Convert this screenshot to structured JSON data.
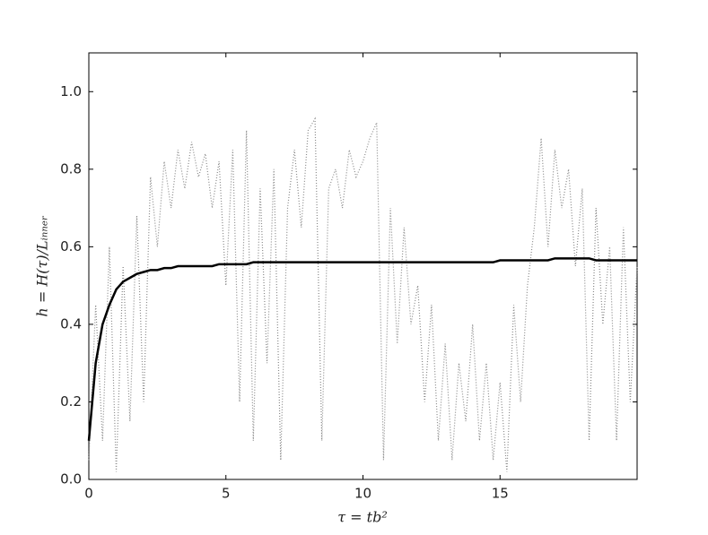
{
  "chart_data": {
    "type": "line",
    "xlabel": "τ = tb²",
    "ylabel": "h = H(τ)/Lᵢₙₙₑᵣ",
    "x": [
      0,
      0.25,
      0.5,
      0.75,
      1,
      1.25,
      1.5,
      1.75,
      2,
      2.25,
      2.5,
      2.75,
      3,
      3.25,
      3.5,
      3.75,
      4,
      4.25,
      4.5,
      4.75,
      5,
      5.25,
      5.5,
      5.75,
      6,
      6.25,
      6.5,
      6.75,
      7,
      7.25,
      7.5,
      7.75,
      8,
      8.25,
      8.5,
      8.75,
      9,
      9.25,
      9.5,
      9.75,
      10,
      10.25,
      10.5,
      10.75,
      11,
      11.25,
      11.5,
      11.75,
      12,
      12.25,
      12.5,
      12.75,
      13,
      13.25,
      13.5,
      13.75,
      14,
      14.25,
      14.5,
      14.75,
      15,
      15.25,
      15.5,
      15.75,
      16,
      16.25,
      16.5,
      16.75,
      17,
      17.25,
      17.5,
      17.75,
      18,
      18.25,
      18.5,
      18.75,
      19,
      19.25,
      19.5,
      19.75,
      20
    ],
    "series": [
      {
        "color": "#888888",
        "style": "dotted",
        "values": [
          0.05,
          0.45,
          0.1,
          0.6,
          0.02,
          0.55,
          0.15,
          0.68,
          0.2,
          0.78,
          0.6,
          0.82,
          0.7,
          0.85,
          0.75,
          0.87,
          0.78,
          0.84,
          0.7,
          0.82,
          0.5,
          0.85,
          0.2,
          0.9,
          0.1,
          0.75,
          0.3,
          0.8,
          0.05,
          0.7,
          0.85,
          0.65,
          0.9,
          0.93,
          0.1,
          0.75,
          0.8,
          0.7,
          0.85,
          0.78,
          0.82,
          0.88,
          0.92,
          0.05,
          0.7,
          0.35,
          0.65,
          0.4,
          0.5,
          0.2,
          0.45,
          0.1,
          0.35,
          0.05,
          0.3,
          0.15,
          0.4,
          0.1,
          0.3,
          0.05,
          0.25,
          0.02,
          0.45,
          0.2,
          0.5,
          0.65,
          0.88,
          0.6,
          0.85,
          0.7,
          0.8,
          0.55,
          0.75,
          0.1,
          0.7,
          0.4,
          0.6,
          0.1,
          0.65,
          0.2,
          0.55
        ]
      },
      {
        "color": "#000000",
        "style": "solid",
        "values": [
          0.1,
          0.3,
          0.4,
          0.45,
          0.49,
          0.51,
          0.52,
          0.53,
          0.535,
          0.54,
          0.54,
          0.545,
          0.545,
          0.55,
          0.55,
          0.55,
          0.55,
          0.55,
          0.55,
          0.555,
          0.555,
          0.555,
          0.555,
          0.555,
          0.56,
          0.56,
          0.56,
          0.56,
          0.56,
          0.56,
          0.56,
          0.56,
          0.56,
          0.56,
          0.56,
          0.56,
          0.56,
          0.56,
          0.56,
          0.56,
          0.56,
          0.56,
          0.56,
          0.56,
          0.56,
          0.56,
          0.56,
          0.56,
          0.56,
          0.56,
          0.56,
          0.56,
          0.56,
          0.56,
          0.56,
          0.56,
          0.56,
          0.56,
          0.56,
          0.56,
          0.565,
          0.565,
          0.565,
          0.565,
          0.565,
          0.565,
          0.565,
          0.565,
          0.57,
          0.57,
          0.57,
          0.57,
          0.57,
          0.57,
          0.565,
          0.565,
          0.565,
          0.565,
          0.565,
          0.565,
          0.565
        ]
      }
    ],
    "xlim": [
      0,
      20
    ],
    "xticks": [
      0,
      5,
      10,
      15
    ],
    "ylim": [
      0,
      1.1
    ],
    "yticks": [
      {
        "value": 0,
        "label": "0.0"
      },
      0.2,
      0.4,
      0.6,
      0.8,
      {
        "value": 1,
        "label": "1.0"
      }
    ]
  }
}
